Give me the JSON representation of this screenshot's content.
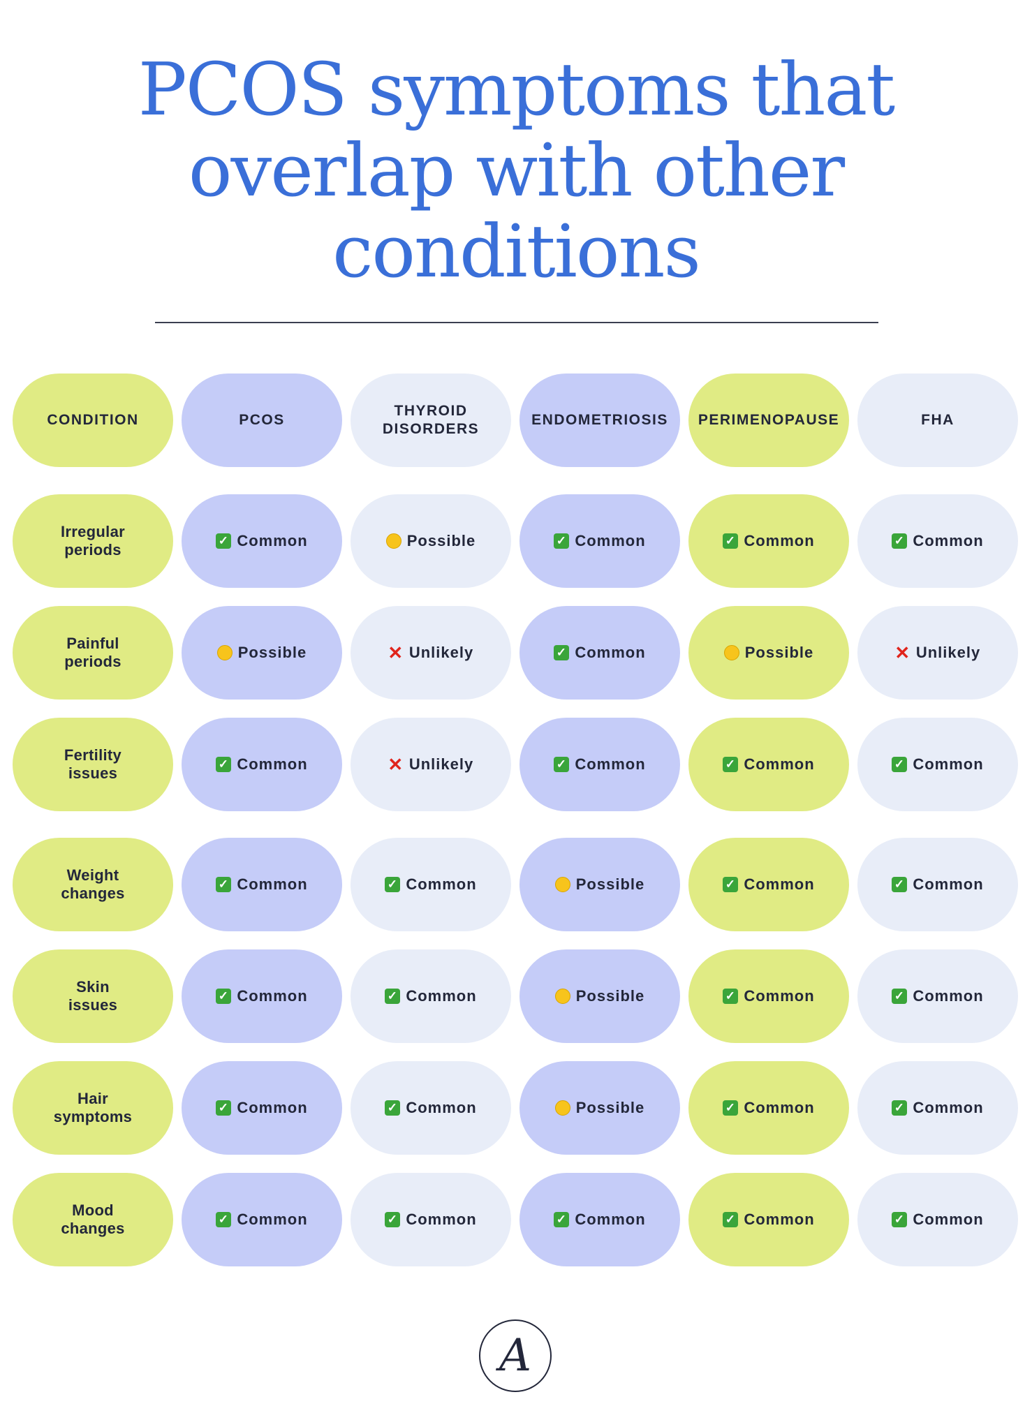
{
  "title": {
    "line1": "PCOS symptoms that",
    "line2": "overlap with other",
    "line3": "conditions"
  },
  "colors": {
    "title": "#3a6fd8",
    "lime": "#e0eb84",
    "periwinkle": "#c5ccf8",
    "pale_blue": "#e8edf8"
  },
  "table": {
    "headers": [
      "CONDITION",
      "PCOS",
      "THYROID DISORDERS",
      "ENDOMETRIOSIS",
      "PERIMENOPAUSE",
      "FHA"
    ],
    "rows": [
      {
        "label": "Irregular periods",
        "cells": [
          {
            "icon": "check-icon",
            "text": "Common"
          },
          {
            "icon": "yellow-dot-icon",
            "text": "Possible"
          },
          {
            "icon": "check-icon",
            "text": "Common"
          },
          {
            "icon": "check-icon",
            "text": "Common"
          },
          {
            "icon": "check-icon",
            "text": "Common"
          }
        ]
      },
      {
        "label": "Painful periods",
        "cells": [
          {
            "icon": "yellow-dot-icon",
            "text": "Possible"
          },
          {
            "icon": "cross-icon",
            "text": "Unlikely"
          },
          {
            "icon": "check-icon",
            "text": "Common"
          },
          {
            "icon": "yellow-dot-icon",
            "text": "Possible"
          },
          {
            "icon": "cross-icon",
            "text": "Unlikely"
          }
        ]
      },
      {
        "label": "Fertility issues",
        "cells": [
          {
            "icon": "check-icon",
            "text": "Common"
          },
          {
            "icon": "cross-icon",
            "text": "Unlikely"
          },
          {
            "icon": "check-icon",
            "text": "Common"
          },
          {
            "icon": "check-icon",
            "text": "Common"
          },
          {
            "icon": "check-icon",
            "text": "Common"
          }
        ]
      },
      {
        "label": "Weight changes",
        "cells": [
          {
            "icon": "check-icon",
            "text": "Common"
          },
          {
            "icon": "check-icon",
            "text": "Common"
          },
          {
            "icon": "yellow-dot-icon",
            "text": "Possible"
          },
          {
            "icon": "check-icon",
            "text": "Common"
          },
          {
            "icon": "check-icon",
            "text": "Common"
          }
        ]
      },
      {
        "label": "Skin issues",
        "cells": [
          {
            "icon": "check-icon",
            "text": "Common"
          },
          {
            "icon": "check-icon",
            "text": "Common"
          },
          {
            "icon": "yellow-dot-icon",
            "text": "Possible"
          },
          {
            "icon": "check-icon",
            "text": "Common"
          },
          {
            "icon": "check-icon",
            "text": "Common"
          }
        ]
      },
      {
        "label": "Hair symptoms",
        "cells": [
          {
            "icon": "check-icon",
            "text": "Common"
          },
          {
            "icon": "check-icon",
            "text": "Common"
          },
          {
            "icon": "yellow-dot-icon",
            "text": "Possible"
          },
          {
            "icon": "check-icon",
            "text": "Common"
          },
          {
            "icon": "check-icon",
            "text": "Common"
          }
        ]
      },
      {
        "label": "Mood changes",
        "cells": [
          {
            "icon": "check-icon",
            "text": "Common"
          },
          {
            "icon": "check-icon",
            "text": "Common"
          },
          {
            "icon": "check-icon",
            "text": "Common"
          },
          {
            "icon": "check-icon",
            "text": "Common"
          },
          {
            "icon": "check-icon",
            "text": "Common"
          }
        ]
      }
    ]
  },
  "logo": {
    "letter": "A"
  }
}
